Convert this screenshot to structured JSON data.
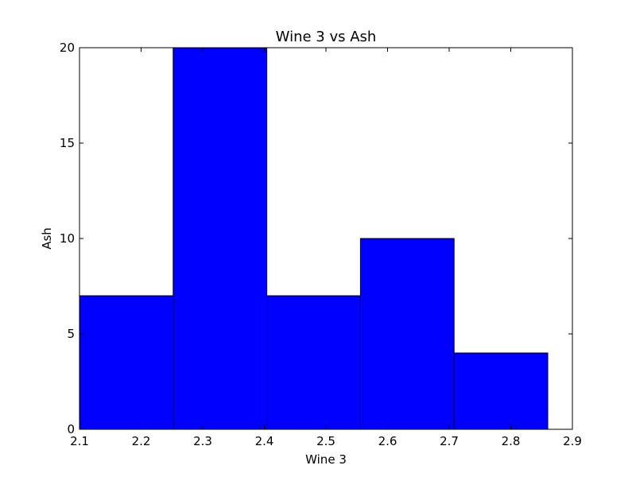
{
  "chart_data": {
    "type": "bar",
    "title": "Wine 3 vs Ash",
    "xlabel": "Wine 3",
    "ylabel": "Ash",
    "xlim": [
      2.1,
      2.9
    ],
    "ylim": [
      0,
      20
    ],
    "x_ticks": [
      "2.1",
      "2.2",
      "2.3",
      "2.4",
      "2.5",
      "2.6",
      "2.7",
      "2.8",
      "2.9"
    ],
    "y_ticks": [
      "0",
      "5",
      "10",
      "15",
      "20"
    ],
    "bins": [
      {
        "x0": 2.1,
        "x1": 2.252,
        "value": 7
      },
      {
        "x0": 2.252,
        "x1": 2.404,
        "value": 20
      },
      {
        "x0": 2.404,
        "x1": 2.556,
        "value": 7
      },
      {
        "x0": 2.556,
        "x1": 2.708,
        "value": 10
      },
      {
        "x0": 2.708,
        "x1": 2.86,
        "value": 4
      }
    ],
    "bar_color": "#0000ff",
    "edge_color": "#000000",
    "grid": false
  }
}
